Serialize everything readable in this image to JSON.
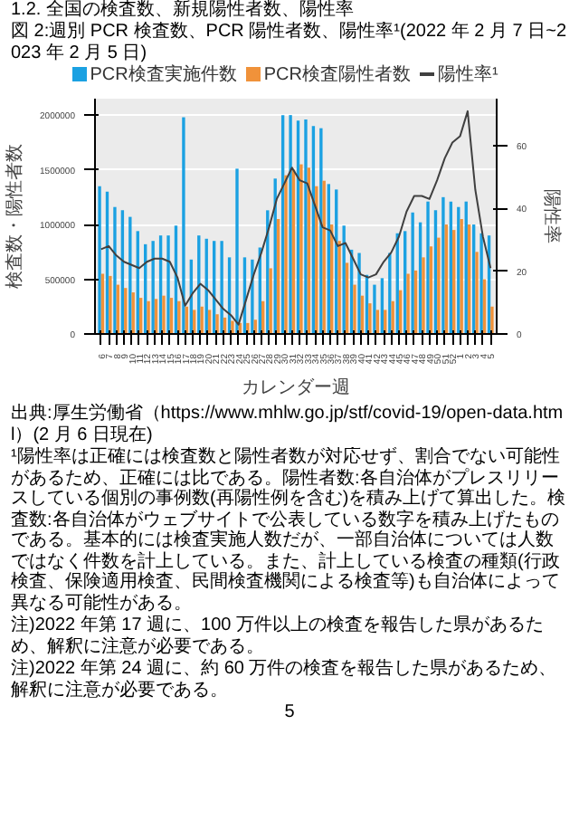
{
  "chart_data": {
    "type": "bar",
    "subtitle": "1.2. 全国の検査数、新規陽性者数、陽性率",
    "title": "図 2:週別 PCR 検査数、PCR 陽性者数、陽性率¹(2022 年 2 月 7 日~2023 年 2 月 5 日)",
    "xlabel": "カレンダー週",
    "ylabel": "検査数・陽性者数",
    "y2label": "陽性率",
    "categories": [
      "6",
      "7",
      "8",
      "9",
      "10",
      "11",
      "12",
      "13",
      "14",
      "15",
      "16",
      "17",
      "18",
      "19",
      "20",
      "21",
      "22",
      "23",
      "24",
      "25",
      "26",
      "27",
      "28",
      "29",
      "30",
      "31",
      "32",
      "33",
      "34",
      "35",
      "36",
      "37",
      "38",
      "39",
      "40",
      "41",
      "42",
      "43",
      "44",
      "45",
      "46",
      "47",
      "48",
      "49",
      "50",
      "51",
      "52",
      "1",
      "2",
      "3",
      "4",
      "5"
    ],
    "series": [
      {
        "name": "PCR検査実施件数",
        "type": "bar",
        "color": "#1ba1e2",
        "values": [
          1350000,
          1300000,
          1160000,
          1130000,
          1070000,
          940000,
          820000,
          850000,
          900000,
          900000,
          990000,
          1980000,
          680000,
          900000,
          870000,
          850000,
          850000,
          700000,
          1510000,
          700000,
          680000,
          790000,
          1130000,
          1420000,
          2000000,
          2000000,
          1950000,
          1960000,
          1900000,
          1880000,
          1370000,
          1320000,
          990000,
          770000,
          740000,
          540000,
          450000,
          510000,
          740000,
          920000,
          940000,
          1110000,
          1020000,
          1210000,
          1130000,
          1250000,
          1210000,
          1160000,
          1210000,
          1000000,
          920000,
          900000
        ]
      },
      {
        "name": "PCR検査陽性者数",
        "type": "bar",
        "color": "#f0923a",
        "values": [
          550000,
          530000,
          450000,
          420000,
          380000,
          330000,
          300000,
          320000,
          350000,
          330000,
          300000,
          250000,
          220000,
          250000,
          220000,
          180000,
          150000,
          120000,
          100000,
          100000,
          130000,
          300000,
          600000,
          1050000,
          1450000,
          1500000,
          1550000,
          1520000,
          1350000,
          1400000,
          1000000,
          850000,
          650000,
          450000,
          350000,
          280000,
          220000,
          220000,
          300000,
          400000,
          550000,
          580000,
          700000,
          800000,
          880000,
          1000000,
          950000,
          1050000,
          1000000,
          750000,
          500000,
          250000
        ]
      },
      {
        "name": "陽性率¹",
        "type": "line",
        "axis": "y2",
        "color": "#404040",
        "values": [
          27,
          28,
          25,
          23,
          22,
          21,
          23,
          24,
          24,
          23,
          18,
          9,
          13,
          16,
          14,
          11,
          8,
          6,
          3,
          11,
          19,
          26,
          34,
          43,
          48,
          53,
          49,
          48,
          41,
          34,
          33,
          28,
          29,
          24,
          19,
          18,
          19,
          23,
          26,
          31,
          39,
          44,
          44,
          43,
          49,
          56,
          61,
          63,
          71,
          46,
          31,
          21
        ]
      }
    ],
    "ylim": [
      0,
      2150000
    ],
    "yticks": [
      0,
      500000,
      1000000,
      1500000,
      2000000
    ],
    "y2lim": [
      0,
      75
    ],
    "y2ticks": [
      0,
      20,
      40,
      60
    ],
    "grid": "y",
    "legend": "top",
    "annotations": [
      "出典:厚生労働省（https://www.mhlw.go.jp/stf/covid-19/open-data.html）(2 月 6 日現在)",
      "¹陽性率は正確には検査数と陽性者数が対応せず、割合でない可能性があるため、正確には比である。陽性者数:各自治体がプレスリリースしている個別の事例数(再陽性例を含む)を積み上げて算出した。検査数:各自治体がウェブサイトで公表している数字を積み上げたものである。基本的には検査実施人数だが、一部自治体については人数ではなく件数を計上している。また、計上している検査の種類(行政検査、保険適用検査、民間検査機関による検査等)も自治体によって異なる可能性がある。",
      "注)2022 年第 17 週に、100 万件以上の検査を報告した県があるため、解釈に注意が必要である。",
      "注)2022 年第 24 週に、約 60 万件の検査を報告した県があるため、解釈に注意が必要である。",
      "5"
    ]
  }
}
